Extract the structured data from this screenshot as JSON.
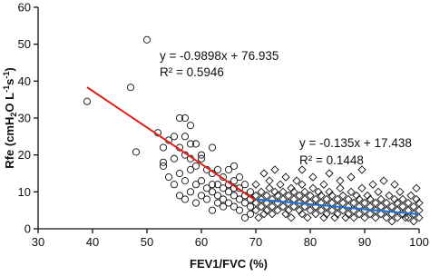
{
  "chart_data": {
    "type": "scatter",
    "xlabel": "FEV1/FVC (%)",
    "ylabel_parts": [
      "Rfe (cmH",
      "2",
      "O L",
      "-1",
      "s",
      "-1",
      ")"
    ],
    "xlim": [
      30,
      100
    ],
    "ylim": [
      0,
      60
    ],
    "xticks": [
      30,
      40,
      50,
      60,
      70,
      80,
      90,
      100
    ],
    "yticks": [
      0,
      10,
      20,
      30,
      40,
      50,
      60
    ],
    "series": [
      {
        "type": "scatter",
        "marker": "circle",
        "color": "#111111",
        "x": [
          39,
          47,
          48,
          50,
          52,
          53,
          53,
          54,
          54,
          55,
          55,
          56,
          56,
          56,
          56,
          57,
          57,
          57,
          57,
          58,
          58,
          58,
          58,
          59,
          59,
          59,
          59,
          60,
          60,
          60,
          61,
          61,
          61,
          62,
          62,
          62,
          62,
          63,
          63,
          63,
          63,
          64,
          64,
          64,
          65,
          65,
          65,
          65,
          66,
          66,
          66,
          66,
          67,
          67,
          67,
          67,
          68,
          68,
          68,
          68,
          69,
          69,
          69,
          69,
          60,
          57,
          62,
          66,
          64,
          53,
          55,
          58
        ],
        "values": [
          34.5,
          38.3,
          20.8,
          51.2,
          26,
          22,
          18,
          24,
          14,
          19,
          12,
          30,
          22,
          15,
          9,
          30,
          25,
          20,
          13,
          28,
          19,
          16,
          10,
          23,
          17,
          12,
          7,
          19,
          13,
          9,
          16,
          11,
          8,
          22,
          15,
          12,
          10,
          16,
          12,
          9,
          7,
          14,
          11,
          8,
          16,
          12,
          10,
          7,
          17,
          13,
          9,
          6,
          14,
          11,
          8,
          5,
          12,
          9,
          7,
          3,
          10,
          8,
          6,
          4,
          20,
          8,
          5,
          11,
          6,
          17,
          25,
          23
        ]
      },
      {
        "type": "scatter",
        "marker": "diamond",
        "color": "#111111",
        "x": [
          70,
          70,
          70,
          70,
          70.5,
          71,
          71,
          71,
          71.5,
          71.5,
          72,
          72,
          72,
          72.5,
          72.5,
          73,
          73,
          73,
          73.5,
          73.5,
          74,
          74,
          74,
          74.5,
          75,
          75,
          75,
          75.5,
          75.5,
          76,
          76,
          76,
          76.5,
          76.5,
          77,
          77,
          77,
          77.5,
          78,
          78,
          78,
          78.5,
          78.5,
          78.5,
          79,
          79,
          79,
          79.5,
          80,
          80,
          80,
          80.5,
          80.5,
          81,
          81,
          81,
          81.5,
          82,
          82,
          82,
          82.5,
          82.5,
          83,
          83,
          83,
          83.5,
          83.5,
          84,
          84,
          84,
          84.5,
          85,
          85,
          85,
          85.5,
          85.5,
          86,
          86,
          86,
          86.5,
          87,
          87,
          87,
          87.5,
          87.5,
          88,
          88,
          88,
          88.5,
          89,
          89,
          89,
          89.5,
          89.5,
          90,
          90,
          90,
          90.5,
          91,
          91,
          91,
          91.5,
          92,
          92,
          92,
          92.5,
          93,
          93,
          93,
          93.5,
          94,
          94,
          94,
          94.5,
          95,
          95,
          95,
          95.5,
          95.5,
          96,
          96,
          96,
          96.5,
          97,
          97,
          97,
          97.5,
          98,
          98,
          98,
          98.5,
          99,
          99,
          99,
          99.5,
          99.5,
          100,
          100,
          100
        ],
        "values": [
          9,
          7,
          5,
          12,
          3,
          8,
          6,
          10,
          4,
          15,
          9,
          7,
          5,
          11,
          13,
          8,
          6,
          4,
          10,
          16,
          9,
          7,
          5,
          12,
          8,
          6,
          10,
          4,
          14,
          7,
          9,
          5,
          11,
          3,
          8,
          6,
          10,
          13,
          7,
          5,
          9,
          4,
          12,
          16,
          8,
          6,
          10,
          3,
          7,
          5,
          9,
          11,
          14,
          6,
          8,
          4,
          10,
          7,
          5,
          9,
          12,
          3,
          6,
          8,
          4,
          10,
          15,
          7,
          5,
          9,
          3,
          6,
          8,
          4,
          11,
          13,
          7,
          5,
          9,
          3,
          6,
          4,
          8,
          10,
          14,
          5,
          7,
          3,
          9,
          6,
          4,
          8,
          11,
          16,
          5,
          7,
          3,
          9,
          6,
          4,
          8,
          12,
          5,
          7,
          3,
          10,
          4,
          6,
          8,
          13,
          5,
          3,
          7,
          9,
          4,
          6,
          2,
          8,
          12,
          5,
          3,
          7,
          10,
          4,
          6,
          8,
          3,
          5,
          3,
          7,
          9,
          4,
          6,
          2,
          8,
          11,
          3,
          5,
          7
        ]
      },
      {
        "type": "line",
        "color": "#e0201b",
        "x": [
          39,
          70
        ],
        "values": [
          38.33,
          7.65
        ]
      },
      {
        "type": "line",
        "color": "#1f6fd0",
        "x": [
          70,
          100
        ],
        "values": [
          7.99,
          3.94
        ]
      }
    ],
    "annotations": [
      "y = -0.9898x + 76.935",
      "R² = 0.5946",
      "y = -0.135x + 17.438",
      "R² = 0.1448"
    ]
  }
}
